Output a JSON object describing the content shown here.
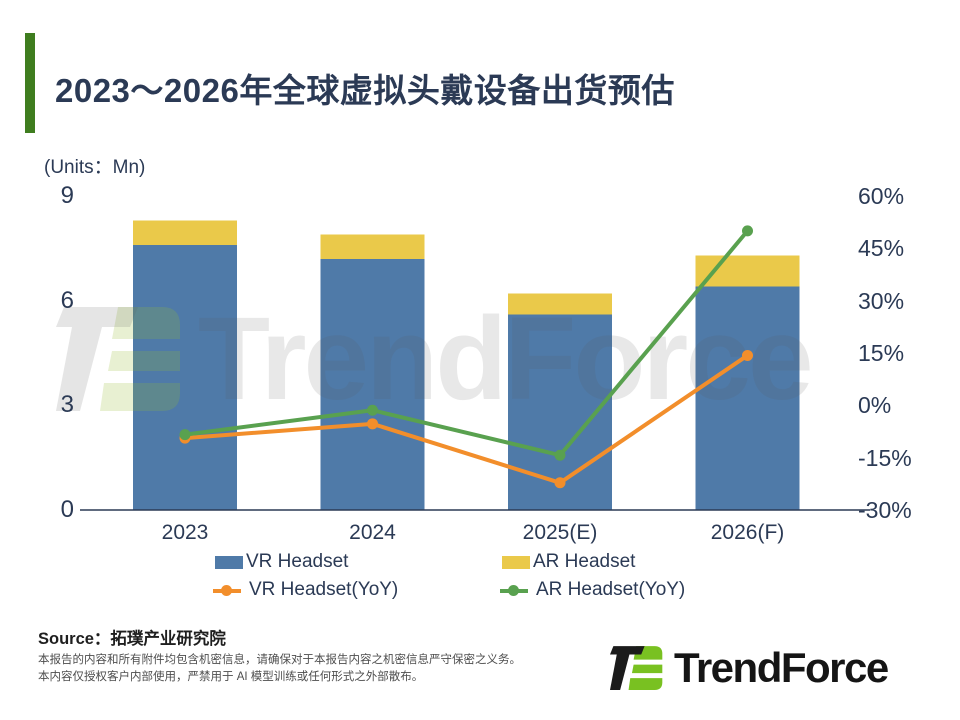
{
  "header": {
    "title": "2023～2026年全球虚拟头戴设备出货预估"
  },
  "chart_data": {
    "type": "bar+line",
    "title": "2023～2026年全球虚拟头戴设备出货预估",
    "units_label": "(Units：Mn)",
    "categories": [
      "2023",
      "2024",
      "2025(E)",
      "2026(F)"
    ],
    "bar_series": [
      {
        "name": "VR Headset",
        "color": "#4F7AA8",
        "values": [
          7.6,
          7.2,
          5.6,
          6.4
        ]
      },
      {
        "name": "AR Headset",
        "color": "#EAC94A",
        "values": [
          0.7,
          0.7,
          0.6,
          0.9
        ]
      }
    ],
    "line_series": [
      {
        "name": "VR Headset(YoY)",
        "color": "#F28E2B",
        "values": [
          -9.4,
          -5.3,
          -22.2,
          14.3
        ]
      },
      {
        "name": "AR Headset(YoY)",
        "color": "#59A14F",
        "values": [
          -8.4,
          -1.4,
          -14.3,
          50
        ]
      }
    ],
    "left_axis": {
      "ticks": [
        0,
        3,
        6,
        9
      ],
      "min": 0,
      "max": 9
    },
    "right_axis": {
      "ticks": [
        "-30%",
        "-15%",
        "0%",
        "15%",
        "30%",
        "45%",
        "60%"
      ],
      "min": -30,
      "max": 60
    },
    "legend_position": "bottom",
    "grid": false,
    "stacked_bars": true
  },
  "watermark": {
    "text": "TrendForce"
  },
  "source": {
    "label": "Source：拓璞产业研究院"
  },
  "footer": {
    "disclaimer_line1": "本报告的内容和所有附件均包含机密信息，请确保对于本报告内容之机密信息严守保密之义务。",
    "disclaimer_line2": "本内容仅授权客户内部使用，严禁用于 AI 模型训练或任何形式之外部散布。",
    "brand": {
      "text": "TrendForce"
    }
  },
  "colors": {
    "accent_green": "#3F7D1F",
    "title_navy": "#2B3A55",
    "axis_navy": "#2B3A55",
    "logo_green": "#79C121",
    "logo_black": "#1b1b1b"
  }
}
